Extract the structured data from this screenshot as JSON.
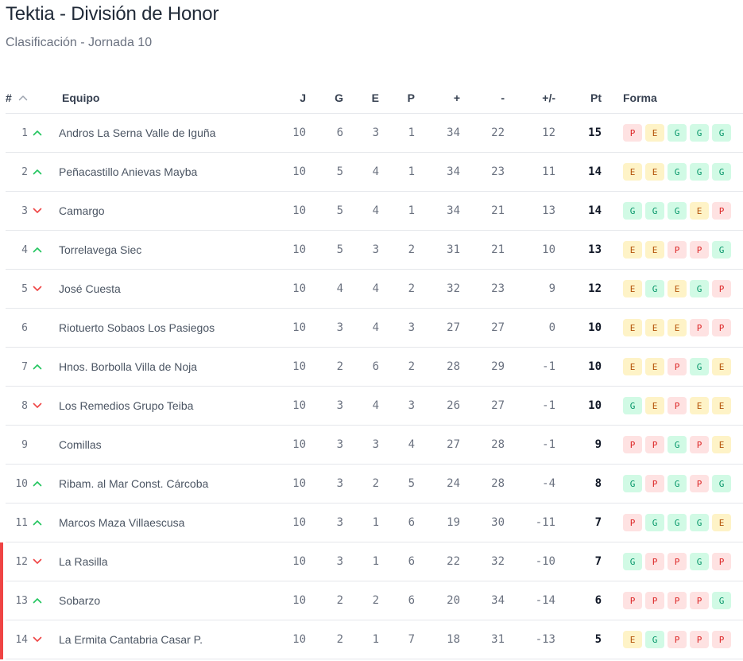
{
  "title": "Tektia - División de Honor",
  "subtitle": "Clasificación - Jornada 10",
  "headers": {
    "pos": "#",
    "team": "Equipo",
    "j": "J",
    "g": "G",
    "e": "E",
    "p": "P",
    "gf": "+",
    "ga": "-",
    "gd": "+/-",
    "pt": "Pt",
    "form": "Forma"
  },
  "colors": {
    "up": "#22c55e",
    "down": "#ef4444",
    "relegation": "#ef4444",
    "win_bg": "#d1fae5",
    "draw_bg": "#fef3c7",
    "loss_bg": "#fee2e2"
  },
  "rows": [
    {
      "pos": "1",
      "trend": "up",
      "team": "Andros La Serna Valle de Iguña",
      "j": "10",
      "g": "6",
      "e": "3",
      "p": "1",
      "gf": "34",
      "ga": "22",
      "gd": "12",
      "pt": "15",
      "form": [
        "P",
        "E",
        "G",
        "G",
        "G"
      ],
      "relegation": false
    },
    {
      "pos": "2",
      "trend": "up",
      "team": "Peñacastillo Anievas Mayba",
      "j": "10",
      "g": "5",
      "e": "4",
      "p": "1",
      "gf": "34",
      "ga": "23",
      "gd": "11",
      "pt": "14",
      "form": [
        "E",
        "E",
        "G",
        "G",
        "G"
      ],
      "relegation": false
    },
    {
      "pos": "3",
      "trend": "down",
      "team": "Camargo",
      "j": "10",
      "g": "5",
      "e": "4",
      "p": "1",
      "gf": "34",
      "ga": "21",
      "gd": "13",
      "pt": "14",
      "form": [
        "G",
        "G",
        "G",
        "E",
        "P"
      ],
      "relegation": false
    },
    {
      "pos": "4",
      "trend": "up",
      "team": "Torrelavega Siec",
      "j": "10",
      "g": "5",
      "e": "3",
      "p": "2",
      "gf": "31",
      "ga": "21",
      "gd": "10",
      "pt": "13",
      "form": [
        "E",
        "E",
        "P",
        "P",
        "G"
      ],
      "relegation": false
    },
    {
      "pos": "5",
      "trend": "down",
      "team": "José Cuesta",
      "j": "10",
      "g": "4",
      "e": "4",
      "p": "2",
      "gf": "32",
      "ga": "23",
      "gd": "9",
      "pt": "12",
      "form": [
        "E",
        "G",
        "E",
        "G",
        "P"
      ],
      "relegation": false
    },
    {
      "pos": "6",
      "trend": "none",
      "team": "Riotuerto Sobaos Los Pasiegos",
      "j": "10",
      "g": "3",
      "e": "4",
      "p": "3",
      "gf": "27",
      "ga": "27",
      "gd": "0",
      "pt": "10",
      "form": [
        "E",
        "E",
        "E",
        "P",
        "P"
      ],
      "relegation": false
    },
    {
      "pos": "7",
      "trend": "up",
      "team": "Hnos. Borbolla Villa de Noja",
      "j": "10",
      "g": "2",
      "e": "6",
      "p": "2",
      "gf": "28",
      "ga": "29",
      "gd": "-1",
      "pt": "10",
      "form": [
        "E",
        "E",
        "P",
        "G",
        "E"
      ],
      "relegation": false
    },
    {
      "pos": "8",
      "trend": "down",
      "team": "Los Remedios Grupo Teiba",
      "j": "10",
      "g": "3",
      "e": "4",
      "p": "3",
      "gf": "26",
      "ga": "27",
      "gd": "-1",
      "pt": "10",
      "form": [
        "G",
        "E",
        "P",
        "E",
        "E"
      ],
      "relegation": false
    },
    {
      "pos": "9",
      "trend": "none",
      "team": "Comillas",
      "j": "10",
      "g": "3",
      "e": "3",
      "p": "4",
      "gf": "27",
      "ga": "28",
      "gd": "-1",
      "pt": "9",
      "form": [
        "P",
        "P",
        "G",
        "P",
        "E"
      ],
      "relegation": false
    },
    {
      "pos": "10",
      "trend": "up",
      "team": "Ribam. al Mar Const. Cárcoba",
      "j": "10",
      "g": "3",
      "e": "2",
      "p": "5",
      "gf": "24",
      "ga": "28",
      "gd": "-4",
      "pt": "8",
      "form": [
        "G",
        "P",
        "G",
        "P",
        "G"
      ],
      "relegation": false
    },
    {
      "pos": "11",
      "trend": "up",
      "team": "Marcos Maza Villaescusa",
      "j": "10",
      "g": "3",
      "e": "1",
      "p": "6",
      "gf": "19",
      "ga": "30",
      "gd": "-11",
      "pt": "7",
      "form": [
        "P",
        "G",
        "G",
        "G",
        "E"
      ],
      "relegation": false
    },
    {
      "pos": "12",
      "trend": "down",
      "team": "La Rasilla",
      "j": "10",
      "g": "3",
      "e": "1",
      "p": "6",
      "gf": "22",
      "ga": "32",
      "gd": "-10",
      "pt": "7",
      "form": [
        "G",
        "P",
        "P",
        "G",
        "P"
      ],
      "relegation": true
    },
    {
      "pos": "13",
      "trend": "up",
      "team": "Sobarzo",
      "j": "10",
      "g": "2",
      "e": "2",
      "p": "6",
      "gf": "20",
      "ga": "34",
      "gd": "-14",
      "pt": "6",
      "form": [
        "P",
        "P",
        "P",
        "P",
        "G"
      ],
      "relegation": true
    },
    {
      "pos": "14",
      "trend": "down",
      "team": "La Ermita Cantabria Casar P.",
      "j": "10",
      "g": "2",
      "e": "1",
      "p": "7",
      "gf": "18",
      "ga": "31",
      "gd": "-13",
      "pt": "5",
      "form": [
        "E",
        "G",
        "P",
        "P",
        "P"
      ],
      "relegation": true
    }
  ]
}
